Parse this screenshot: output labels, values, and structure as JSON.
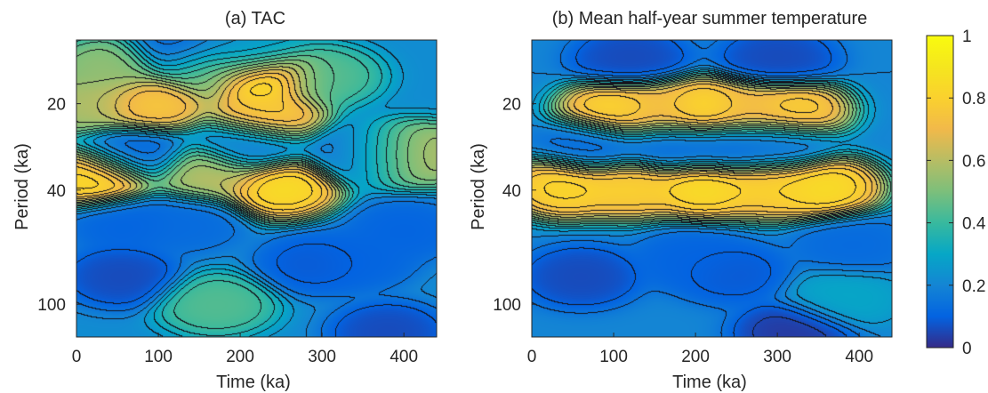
{
  "figure": {
    "colorbar": {
      "colormap": "parula",
      "range": [
        0,
        1
      ],
      "ticks": [
        0,
        0.2,
        0.4,
        0.6,
        0.8,
        1
      ],
      "tick_labels": [
        "0",
        "0.2",
        "0.4",
        "0.6",
        "0.8",
        "1"
      ]
    }
  },
  "chart_data": [
    {
      "type": "heatmap",
      "subtype": "wavelet-power-contour",
      "title": "(a) TAC",
      "xlabel": "Time (ka)",
      "ylabel": "Period (ka)",
      "xlim": [
        0,
        440
      ],
      "ylim": [
        12,
        130
      ],
      "y_scale": "log",
      "y_reversed": true,
      "x_ticks": [
        0,
        100,
        200,
        300,
        400
      ],
      "x_tick_labels": [
        "0",
        "100",
        "200",
        "300",
        "400"
      ],
      "y_ticks": [
        20,
        40,
        100
      ],
      "y_tick_labels": [
        "20",
        "40",
        "100"
      ],
      "background_value": 0.22,
      "features": [
        {
          "x": 25,
          "period": 36,
          "value": 0.88
        },
        {
          "x": 90,
          "period": 20,
          "value": 0.78
        },
        {
          "x": 160,
          "period": 35,
          "value": 0.62
        },
        {
          "x": 250,
          "period": 39,
          "value": 0.88
        },
        {
          "x": 228,
          "period": 16,
          "value": 0.95
        },
        {
          "x": 232,
          "period": 22,
          "value": 0.8
        },
        {
          "x": 215,
          "period": 13,
          "value": 0.5
        },
        {
          "x": 380,
          "period": 30,
          "value": 0.5
        },
        {
          "x": 420,
          "period": 30,
          "value": 0.62
        },
        {
          "x": 10,
          "period": 20,
          "value": 0.6
        },
        {
          "x": 40,
          "period": 15,
          "value": 0.55
        },
        {
          "x": 160,
          "period": 15,
          "value": 0.5
        },
        {
          "x": 300,
          "period": 16,
          "value": 0.45
        },
        {
          "x": 170,
          "period": 100,
          "value": 0.45
        },
        {
          "x": 60,
          "period": 52,
          "value": 0.1
        },
        {
          "x": 135,
          "period": 52,
          "value": 0.12
        },
        {
          "x": 55,
          "period": 80,
          "value": 0.05
        },
        {
          "x": 290,
          "period": 72,
          "value": 0.08
        },
        {
          "x": 345,
          "period": 70,
          "value": 0.1
        },
        {
          "x": 400,
          "period": 55,
          "value": 0.1
        },
        {
          "x": 380,
          "period": 125,
          "value": 0.05
        },
        {
          "x": 70,
          "period": 30,
          "value": 0.1
        },
        {
          "x": 210,
          "period": 28,
          "value": 0.15
        },
        {
          "x": 350,
          "period": 30,
          "value": 0.12
        },
        {
          "x": 210,
          "period": 13,
          "value": 0.0
        },
        {
          "x": 130,
          "period": 13,
          "value": 0.1
        }
      ]
    },
    {
      "type": "heatmap",
      "subtype": "wavelet-power-contour",
      "title": "(b) Mean half-year summer temperature",
      "xlabel": "Time (ka)",
      "ylabel": "Period (ka)",
      "xlim": [
        0,
        440
      ],
      "ylim": [
        12,
        130
      ],
      "y_scale": "log",
      "y_reversed": true,
      "x_ticks": [
        0,
        100,
        200,
        300,
        400
      ],
      "x_tick_labels": [
        "0",
        "100",
        "200",
        "300",
        "400"
      ],
      "y_ticks": [
        20,
        40,
        100
      ],
      "y_tick_labels": [
        "20",
        "40",
        "100"
      ],
      "background_value": 0.2,
      "features": [
        {
          "x": 40,
          "period": 39,
          "value": 0.85
        },
        {
          "x": 120,
          "period": 39,
          "value": 0.82
        },
        {
          "x": 210,
          "period": 39,
          "value": 0.88
        },
        {
          "x": 290,
          "period": 39,
          "value": 0.82
        },
        {
          "x": 355,
          "period": 39,
          "value": 0.88
        },
        {
          "x": 105,
          "period": 21,
          "value": 0.85
        },
        {
          "x": 210,
          "period": 21,
          "value": 0.9
        },
        {
          "x": 315,
          "period": 21,
          "value": 0.82
        },
        {
          "x": 160,
          "period": 21,
          "value": 0.7
        },
        {
          "x": 260,
          "period": 21,
          "value": 0.7
        },
        {
          "x": 60,
          "period": 80,
          "value": 0.05
        },
        {
          "x": 195,
          "period": 70,
          "value": 0.1
        },
        {
          "x": 245,
          "period": 78,
          "value": 0.08
        },
        {
          "x": 390,
          "period": 62,
          "value": 0.12
        },
        {
          "x": 380,
          "period": 95,
          "value": 0.3
        },
        {
          "x": 320,
          "period": 125,
          "value": 0.02
        },
        {
          "x": 75,
          "period": 28,
          "value": 0.12
        },
        {
          "x": 170,
          "period": 28,
          "value": 0.12
        },
        {
          "x": 240,
          "period": 28,
          "value": 0.12
        },
        {
          "x": 300,
          "period": 28,
          "value": 0.15
        },
        {
          "x": 120,
          "period": 14,
          "value": 0.05
        },
        {
          "x": 300,
          "period": 14,
          "value": 0.05
        }
      ]
    }
  ]
}
